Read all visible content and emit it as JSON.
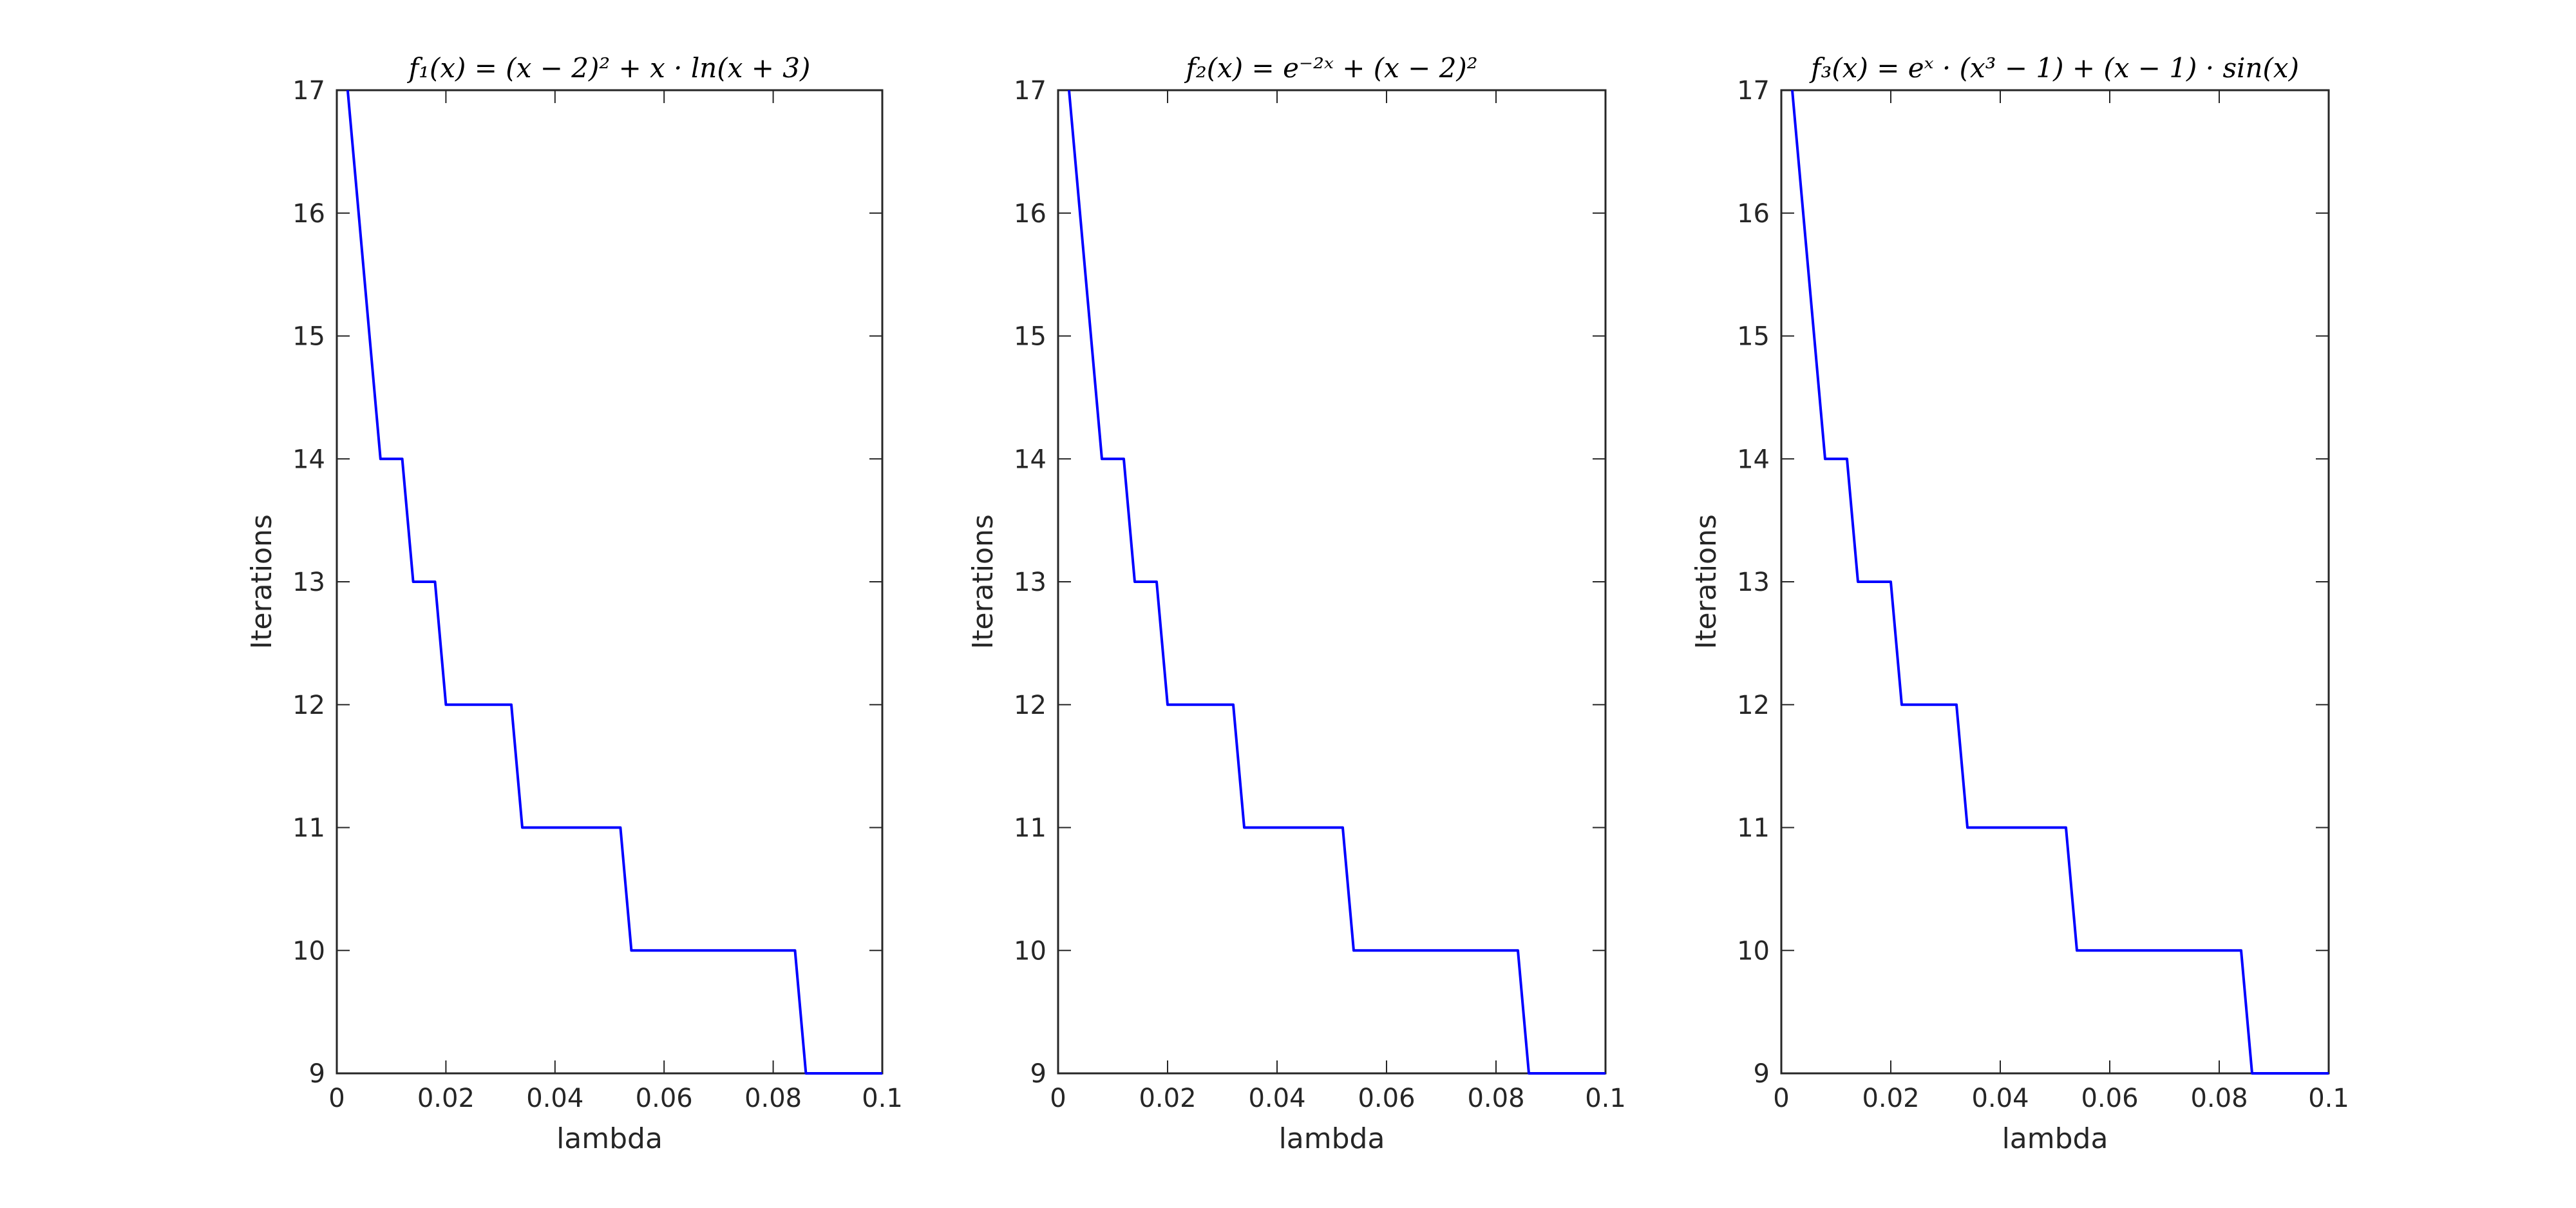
{
  "chart_data": [
    {
      "type": "line",
      "title": "f₁(x) = (x − 2)² + x · ln(x + 3)",
      "xlabel": "lambda",
      "ylabel": "Iterations",
      "xlim": [
        0,
        0.1
      ],
      "ylim": [
        9,
        17
      ],
      "xticks": [
        "0",
        "0.02",
        "0.04",
        "0.06",
        "0.08",
        "0.1"
      ],
      "yticks": [
        "9",
        "10",
        "11",
        "12",
        "13",
        "14",
        "15",
        "16",
        "17"
      ],
      "grid": false,
      "line_color": "#0000ff",
      "series": [
        {
          "name": "iterations",
          "x": [
            0.002,
            0.004,
            0.006,
            0.008,
            0.012,
            0.014,
            0.018,
            0.02,
            0.032,
            0.034,
            0.052,
            0.054,
            0.084,
            0.086,
            0.1
          ],
          "y": [
            17,
            16,
            15,
            14,
            14,
            13,
            13,
            12,
            12,
            11,
            11,
            10,
            10,
            9,
            9
          ]
        }
      ]
    },
    {
      "type": "line",
      "title": "f₂(x) = e⁻²ˣ + (x − 2)²",
      "xlabel": "lambda",
      "ylabel": "Iterations",
      "xlim": [
        0,
        0.1
      ],
      "ylim": [
        9,
        17
      ],
      "xticks": [
        "0",
        "0.02",
        "0.04",
        "0.06",
        "0.08",
        "0.1"
      ],
      "yticks": [
        "9",
        "10",
        "11",
        "12",
        "13",
        "14",
        "15",
        "16",
        "17"
      ],
      "grid": false,
      "line_color": "#0000ff",
      "series": [
        {
          "name": "iterations",
          "x": [
            0.002,
            0.004,
            0.006,
            0.008,
            0.012,
            0.014,
            0.018,
            0.02,
            0.032,
            0.034,
            0.052,
            0.054,
            0.084,
            0.086,
            0.1
          ],
          "y": [
            17,
            16,
            15,
            14,
            14,
            13,
            13,
            12,
            12,
            11,
            11,
            10,
            10,
            9,
            9
          ]
        }
      ]
    },
    {
      "type": "line",
      "title": "f₃(x) = eˣ · (x³ − 1) + (x − 1) · sin(x)",
      "xlabel": "lambda",
      "ylabel": "Iterations",
      "xlim": [
        0,
        0.1
      ],
      "ylim": [
        9,
        17
      ],
      "xticks": [
        "0",
        "0.02",
        "0.04",
        "0.06",
        "0.08",
        "0.1"
      ],
      "yticks": [
        "9",
        "10",
        "11",
        "12",
        "13",
        "14",
        "15",
        "16",
        "17"
      ],
      "grid": false,
      "line_color": "#0000ff",
      "series": [
        {
          "name": "iterations",
          "x": [
            0.002,
            0.004,
            0.006,
            0.008,
            0.012,
            0.014,
            0.02,
            0.022,
            0.032,
            0.034,
            0.052,
            0.054,
            0.084,
            0.086,
            0.1
          ],
          "y": [
            17,
            16,
            15,
            14,
            14,
            13,
            13,
            12,
            12,
            11,
            11,
            10,
            10,
            9,
            9
          ]
        }
      ]
    }
  ]
}
